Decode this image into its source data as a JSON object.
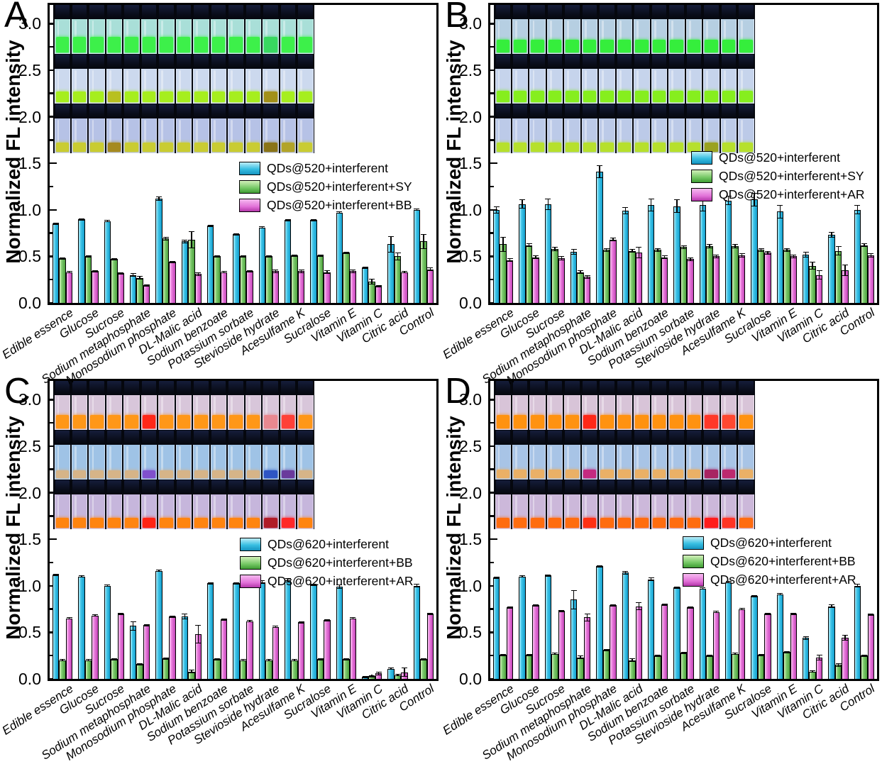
{
  "colors": {
    "bar_cyan": "#35c0e4",
    "bar_green": "#7cc96e",
    "bar_magenta": "#e878d8",
    "axis": "#000000",
    "background": "#ffffff"
  },
  "chart_data": {
    "type": "bar",
    "ylabel": "Normalized FL intensity",
    "ylim": [
      0,
      3.2
    ],
    "yticks": [
      "0.0",
      "0.5",
      "1.0",
      "1.5",
      "2.0",
      "2.5",
      "3.0"
    ],
    "grid": false,
    "legend_position": "inside-right",
    "categories": [
      "Edible essence",
      "Glucose",
      "Sucrose",
      "Sodium metaphosphate",
      "Monosodium phosphate",
      "DL-Malic acid",
      "Sodium benzoate",
      "Potassium sorbate",
      "Stevioside hydrate",
      "Acesulfame K",
      "Sucralose",
      "Vitamin E",
      "Vitamin C",
      "Citric acid",
      "Control"
    ],
    "panels": [
      {
        "letter": "A",
        "series": [
          {
            "name": "QDs@520+interferent",
            "color": "cyan",
            "values": [
              0.85,
              0.9,
              0.88,
              0.3,
              1.12,
              0.66,
              0.83,
              0.74,
              0.81,
              0.89,
              0.89,
              0.97,
              0.38,
              0.63,
              1.0
            ],
            "errors": [
              0.01,
              0.01,
              0.01,
              0.02,
              0.02,
              0.02,
              0.01,
              0.01,
              0.01,
              0.01,
              0.01,
              0.01,
              0.01,
              0.09,
              0.01
            ]
          },
          {
            "name": "QDs@520+interferent+SY",
            "color": "green",
            "values": [
              0.48,
              0.5,
              0.47,
              0.27,
              0.69,
              0.68,
              0.5,
              0.5,
              0.5,
              0.51,
              0.51,
              0.54,
              0.23,
              0.5,
              0.66
            ],
            "errors": [
              0.01,
              0.01,
              0.01,
              0.02,
              0.02,
              0.09,
              0.01,
              0.01,
              0.01,
              0.01,
              0.01,
              0.01,
              0.03,
              0.04,
              0.08
            ]
          },
          {
            "name": "QDs@520+interferent+BB",
            "color": "magenta",
            "values": [
              0.33,
              0.34,
              0.32,
              0.19,
              0.44,
              0.31,
              0.33,
              0.34,
              0.34,
              0.34,
              0.33,
              0.34,
              0.18,
              0.33,
              0.36
            ],
            "errors": [
              0.01,
              0.01,
              0.01,
              0.01,
              0.01,
              0.02,
              0.01,
              0.01,
              0.02,
              0.02,
              0.02,
              0.02,
              0.01,
              0.01,
              0.02
            ]
          }
        ],
        "inset": {
          "rows": [
            {
              "tint": "#a9dfd8",
              "liquid": "#3df04a",
              "level": 0.45,
              "exceptions": {
                "12": "#38d860"
              }
            },
            {
              "tint": "#ccd9ee",
              "liquid": "#a6ee1e",
              "level": 0.32,
              "exceptions": {
                "3": "#b8c020",
                "12": "#a29018"
              }
            },
            {
              "tint": "#b6c2e6",
              "liquid": "#c9cc32",
              "level": 0.28,
              "exceptions": {
                "3": "#a58a20",
                "12": "#8a7418",
                "13": "#b2a428"
              }
            }
          ]
        }
      },
      {
        "letter": "B",
        "series": [
          {
            "name": "QDs@520+interferent",
            "color": "cyan",
            "values": [
              1.0,
              1.06,
              1.06,
              0.55,
              1.41,
              0.99,
              1.05,
              1.04,
              1.05,
              1.1,
              1.11,
              0.98,
              0.52,
              0.73,
              1.0
            ],
            "errors": [
              0.04,
              0.05,
              0.06,
              0.03,
              0.07,
              0.04,
              0.07,
              0.07,
              0.07,
              0.05,
              0.07,
              0.07,
              0.03,
              0.03,
              0.05
            ]
          },
          {
            "name": "QDs@520+interferent+SY",
            "color": "green",
            "values": [
              0.63,
              0.62,
              0.58,
              0.33,
              0.57,
              0.56,
              0.57,
              0.6,
              0.61,
              0.61,
              0.57,
              0.57,
              0.4,
              0.56,
              0.62
            ],
            "errors": [
              0.08,
              0.02,
              0.02,
              0.02,
              0.02,
              0.02,
              0.02,
              0.02,
              0.02,
              0.02,
              0.02,
              0.02,
              0.04,
              0.05,
              0.02
            ]
          },
          {
            "name": "QDs@520+interferent+AR",
            "color": "magenta",
            "values": [
              0.46,
              0.49,
              0.48,
              0.28,
              0.68,
              0.54,
              0.49,
              0.47,
              0.5,
              0.51,
              0.54,
              0.5,
              0.3,
              0.35,
              0.51
            ],
            "errors": [
              0.02,
              0.02,
              0.02,
              0.02,
              0.02,
              0.06,
              0.02,
              0.02,
              0.02,
              0.02,
              0.02,
              0.02,
              0.05,
              0.06,
              0.02
            ]
          }
        ],
        "inset": {
          "rows": [
            {
              "tint": "#b6cfe2",
              "liquid": "#35ee3c",
              "level": 0.38,
              "exceptions": {}
            },
            {
              "tint": "#c6d4ec",
              "liquid": "#86ee1e",
              "level": 0.33,
              "exceptions": {}
            },
            {
              "tint": "#bccae8",
              "liquid": "#b6e02c",
              "level": 0.28,
              "exceptions": {
                "12": "#9aa220"
              }
            }
          ]
        }
      },
      {
        "letter": "C",
        "series": [
          {
            "name": "QDs@620+interferent",
            "color": "cyan",
            "values": [
              1.12,
              1.1,
              1.0,
              0.57,
              1.16,
              0.67,
              1.03,
              1.03,
              1.04,
              1.06,
              1.01,
              0.99,
              0.02,
              0.11,
              1.0
            ],
            "errors": [
              0.01,
              0.01,
              0.01,
              0.05,
              0.01,
              0.03,
              0.01,
              0.01,
              0.02,
              0.02,
              0.01,
              0.02,
              0.01,
              0.01,
              0.02
            ]
          },
          {
            "name": "QDs@620+interferent+BB",
            "color": "green",
            "values": [
              0.2,
              0.2,
              0.21,
              0.16,
              0.22,
              0.08,
              0.21,
              0.2,
              0.2,
              0.2,
              0.21,
              0.21,
              0.03,
              0.04,
              0.21
            ],
            "errors": [
              0.01,
              0.01,
              0.01,
              0.01,
              0.01,
              0.02,
              0.01,
              0.01,
              0.01,
              0.01,
              0.01,
              0.01,
              0.01,
              0.01,
              0.01
            ]
          },
          {
            "name": "QDs@620+interferent+AR",
            "color": "magenta",
            "values": [
              0.65,
              0.68,
              0.7,
              0.58,
              0.67,
              0.48,
              0.64,
              0.62,
              0.56,
              0.61,
              0.63,
              0.65,
              0.06,
              0.07,
              0.7
            ],
            "errors": [
              0.01,
              0.01,
              0.01,
              0.01,
              0.01,
              0.1,
              0.01,
              0.01,
              0.01,
              0.01,
              0.01,
              0.01,
              0.02,
              0.05,
              0.01
            ]
          }
        ],
        "inset": {
          "rows": [
            {
              "tint": "#d8c6da",
              "liquid": "#ff9718",
              "level": 0.4,
              "exceptions": {
                "5": "#ff2818",
                "12": "#e88890",
                "13": "#ff4038"
              }
            },
            {
              "tint": "#9fc3e6",
              "liquid": "#d6b488",
              "level": 0.22,
              "exceptions": {
                "5": "#8050cc",
                "12": "#2f55c4",
                "13": "#6a3a9c"
              }
            },
            {
              "tint": "#c6b6dc",
              "liquid": "#ff8410",
              "level": 0.3,
              "exceptions": {
                "5": "#ff2414",
                "12": "#b01c28",
                "13": "#ff2828"
              }
            }
          ]
        }
      },
      {
        "letter": "D",
        "series": [
          {
            "name": "QDs@620+interferent",
            "color": "cyan",
            "values": [
              1.09,
              1.1,
              1.11,
              0.85,
              1.21,
              1.14,
              1.07,
              0.98,
              0.97,
              1.04,
              0.89,
              0.91,
              0.44,
              0.78,
              1.0
            ],
            "errors": [
              0.01,
              0.01,
              0.01,
              0.1,
              0.01,
              0.02,
              0.02,
              0.01,
              0.01,
              0.01,
              0.01,
              0.01,
              0.02,
              0.02,
              0.02
            ]
          },
          {
            "name": "QDs@620+interferent+BB",
            "color": "green",
            "values": [
              0.26,
              0.26,
              0.27,
              0.23,
              0.31,
              0.2,
              0.25,
              0.28,
              0.25,
              0.27,
              0.26,
              0.29,
              0.08,
              0.15,
              0.25
            ],
            "errors": [
              0.01,
              0.01,
              0.01,
              0.02,
              0.01,
              0.02,
              0.01,
              0.01,
              0.01,
              0.01,
              0.01,
              0.01,
              0.01,
              0.02,
              0.01
            ]
          },
          {
            "name": "QDs@620+interferent+AR",
            "color": "magenta",
            "values": [
              0.77,
              0.79,
              0.73,
              0.66,
              0.79,
              0.78,
              0.8,
              0.77,
              0.72,
              0.75,
              0.7,
              0.7,
              0.23,
              0.44,
              0.69
            ],
            "errors": [
              0.01,
              0.01,
              0.01,
              0.04,
              0.01,
              0.04,
              0.01,
              0.01,
              0.01,
              0.01,
              0.01,
              0.01,
              0.03,
              0.03,
              0.01
            ]
          }
        ],
        "inset": {
          "rows": [
            {
              "tint": "#d8c4d8",
              "liquid": "#ff9210",
              "level": 0.4,
              "exceptions": {
                "5": "#ff2818",
                "12": "#ff3828",
                "13": "#ff4830"
              }
            },
            {
              "tint": "#a8c4e6",
              "liquid": "#eab066",
              "level": 0.24,
              "exceptions": {
                "5": "#c42a80",
                "12": "#a82462",
                "13": "#bc2a6e"
              }
            },
            {
              "tint": "#ccb8da",
              "liquid": "#ff6c10",
              "level": 0.3,
              "exceptions": {
                "5": "#ff3014",
                "12": "#ff1c1c",
                "13": "#ff3424"
              }
            }
          ]
        }
      }
    ]
  }
}
